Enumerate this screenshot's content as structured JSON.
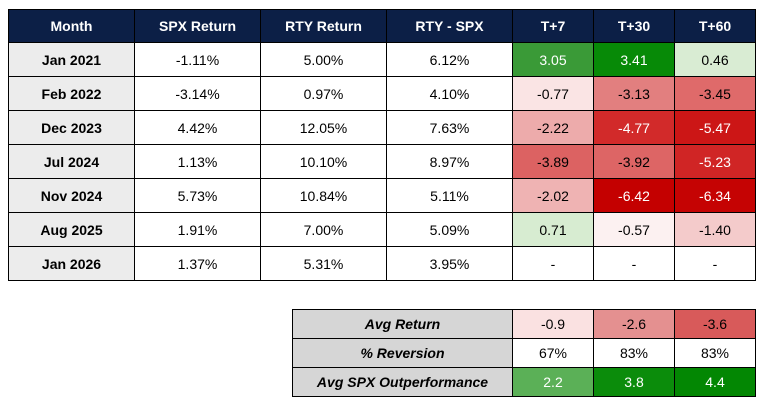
{
  "colors": {
    "header_bg": "#0c1f46",
    "header_text": "#ffffff",
    "label_bg": "#ececec",
    "summary_label_bg": "#d6d6d6"
  },
  "main_table": {
    "headers": [
      "Month",
      "SPX Return",
      "RTY Return",
      "RTY - SPX",
      "T+7",
      "T+30",
      "T+60"
    ],
    "rows": [
      {
        "month": "Jan 2021",
        "spx": "-1.11%",
        "rty": "5.00%",
        "diff": "6.12%",
        "t7": "3.05",
        "t30": "3.41",
        "t60": "0.46"
      },
      {
        "month": "Feb 2022",
        "spx": "-3.14%",
        "rty": "0.97%",
        "diff": "4.10%",
        "t7": "-0.77",
        "t30": "-3.13",
        "t60": "-3.45"
      },
      {
        "month": "Dec 2023",
        "spx": "4.42%",
        "rty": "12.05%",
        "diff": "7.63%",
        "t7": "-2.22",
        "t30": "-4.77",
        "t60": "-5.47"
      },
      {
        "month": "Jul 2024",
        "spx": "1.13%",
        "rty": "10.10%",
        "diff": "8.97%",
        "t7": "-3.89",
        "t30": "-3.92",
        "t60": "-5.23"
      },
      {
        "month": "Nov 2024",
        "spx": "5.73%",
        "rty": "10.84%",
        "diff": "5.11%",
        "t7": "-2.02",
        "t30": "-6.42",
        "t60": "-6.34"
      },
      {
        "month": "Aug 2025",
        "spx": "1.91%",
        "rty": "7.00%",
        "diff": "5.09%",
        "t7": "0.71",
        "t30": "-0.57",
        "t60": "-1.40"
      },
      {
        "month": "Jan 2026",
        "spx": "1.37%",
        "rty": "5.31%",
        "diff": "3.95%",
        "t7": "-",
        "t30": "-",
        "t60": "-"
      }
    ]
  },
  "summary_table": {
    "rows": [
      {
        "label": "Avg Return",
        "t7": "-0.9",
        "t30": "-2.6",
        "t60": "-3.6"
      },
      {
        "label": "% Reversion",
        "t7": "67%",
        "t30": "83%",
        "t60": "83%"
      },
      {
        "label": "Avg SPX Outperformance",
        "t7": "2.2",
        "t30": "3.8",
        "t60": "4.4"
      }
    ]
  },
  "cell_colors": {
    "main": [
      {
        "t7": {
          "bg": "#3a9a37",
          "fg": "#ffffff"
        },
        "t30": {
          "bg": "#078a07",
          "fg": "#ffffff"
        },
        "t60": {
          "bg": "#d9ecd3",
          "fg": "#000000"
        }
      },
      {
        "t7": {
          "bg": "#fae4e4",
          "fg": "#000000"
        },
        "t30": {
          "bg": "#e27f7f",
          "fg": "#000000"
        },
        "t60": {
          "bg": "#df6a6a",
          "fg": "#000000"
        }
      },
      {
        "t7": {
          "bg": "#edabab",
          "fg": "#000000"
        },
        "t30": {
          "bg": "#d22a2a",
          "fg": "#ffffff"
        },
        "t60": {
          "bg": "#cc1616",
          "fg": "#ffffff"
        }
      },
      {
        "t7": {
          "bg": "#dc6262",
          "fg": "#000000"
        },
        "t30": {
          "bg": "#dd6565",
          "fg": "#000000"
        },
        "t60": {
          "bg": "#d02525",
          "fg": "#ffffff"
        }
      },
      {
        "t7": {
          "bg": "#efb3b3",
          "fg": "#000000"
        },
        "t30": {
          "bg": "#c40000",
          "fg": "#ffffff"
        },
        "t60": {
          "bg": "#c50303",
          "fg": "#ffffff"
        }
      },
      {
        "t7": {
          "bg": "#d7ecd1",
          "fg": "#000000"
        },
        "t30": {
          "bg": "#fcf1f1",
          "fg": "#000000"
        },
        "t60": {
          "bg": "#f4cbcb",
          "fg": "#000000"
        }
      },
      {
        "t7": {
          "bg": "#ffffff",
          "fg": "#000000"
        },
        "t30": {
          "bg": "#ffffff",
          "fg": "#000000"
        },
        "t60": {
          "bg": "#ffffff",
          "fg": "#000000"
        }
      }
    ],
    "summary": [
      {
        "t7": {
          "bg": "#fae1e1",
          "fg": "#000000"
        },
        "t30": {
          "bg": "#e49090",
          "fg": "#000000"
        },
        "t60": {
          "bg": "#d85a5a",
          "fg": "#000000"
        }
      },
      {
        "t7": {
          "bg": "#ffffff",
          "fg": "#000000"
        },
        "t30": {
          "bg": "#ffffff",
          "fg": "#000000"
        },
        "t60": {
          "bg": "#ffffff",
          "fg": "#000000"
        }
      },
      {
        "t7": {
          "bg": "#5bb057",
          "fg": "#ffffff"
        },
        "t30": {
          "bg": "#0b8c0b",
          "fg": "#ffffff"
        },
        "t60": {
          "bg": "#038703",
          "fg": "#ffffff"
        }
      }
    ]
  }
}
